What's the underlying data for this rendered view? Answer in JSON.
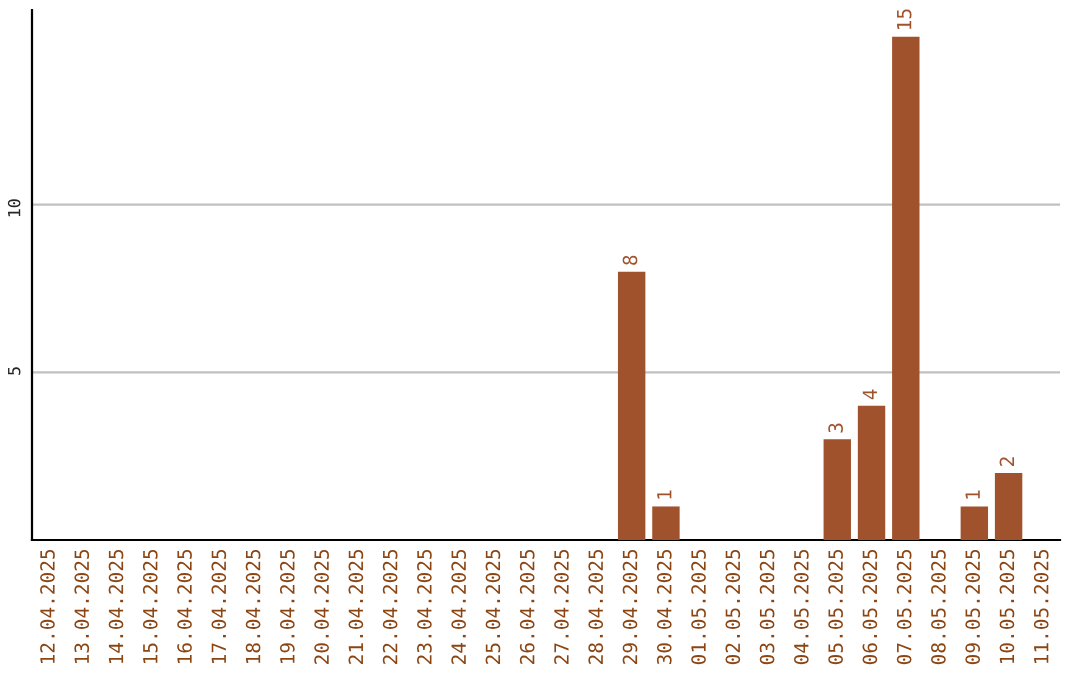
{
  "chart_data": {
    "type": "bar",
    "categories": [
      "12.04.2025",
      "13.04.2025",
      "14.04.2025",
      "15.04.2025",
      "16.04.2025",
      "17.04.2025",
      "18.04.2025",
      "19.04.2025",
      "20.04.2025",
      "21.04.2025",
      "22.04.2025",
      "23.04.2025",
      "24.04.2025",
      "25.04.2025",
      "26.04.2025",
      "27.04.2025",
      "28.04.2025",
      "29.04.2025",
      "30.04.2025",
      "01.05.2025",
      "02.05.2025",
      "03.05.2025",
      "04.05.2025",
      "05.05.2025",
      "06.05.2025",
      "07.05.2025",
      "08.05.2025",
      "09.05.2025",
      "10.05.2025",
      "11.05.2025"
    ],
    "values": [
      0,
      0,
      0,
      0,
      0,
      0,
      0,
      0,
      0,
      0,
      0,
      0,
      0,
      0,
      0,
      0,
      0,
      8,
      1,
      0,
      0,
      0,
      0,
      3,
      4,
      15,
      0,
      1,
      2,
      0
    ],
    "value_labels": [
      null,
      null,
      null,
      null,
      null,
      null,
      null,
      null,
      null,
      null,
      null,
      null,
      null,
      null,
      null,
      null,
      null,
      "8",
      "1",
      null,
      null,
      null,
      null,
      "3",
      "4",
      "15",
      null,
      "1",
      "2",
      null
    ],
    "color": "#a0522d",
    "ylim": [
      0,
      15.8
    ],
    "yticks": [
      5,
      10
    ],
    "grid": "y"
  }
}
